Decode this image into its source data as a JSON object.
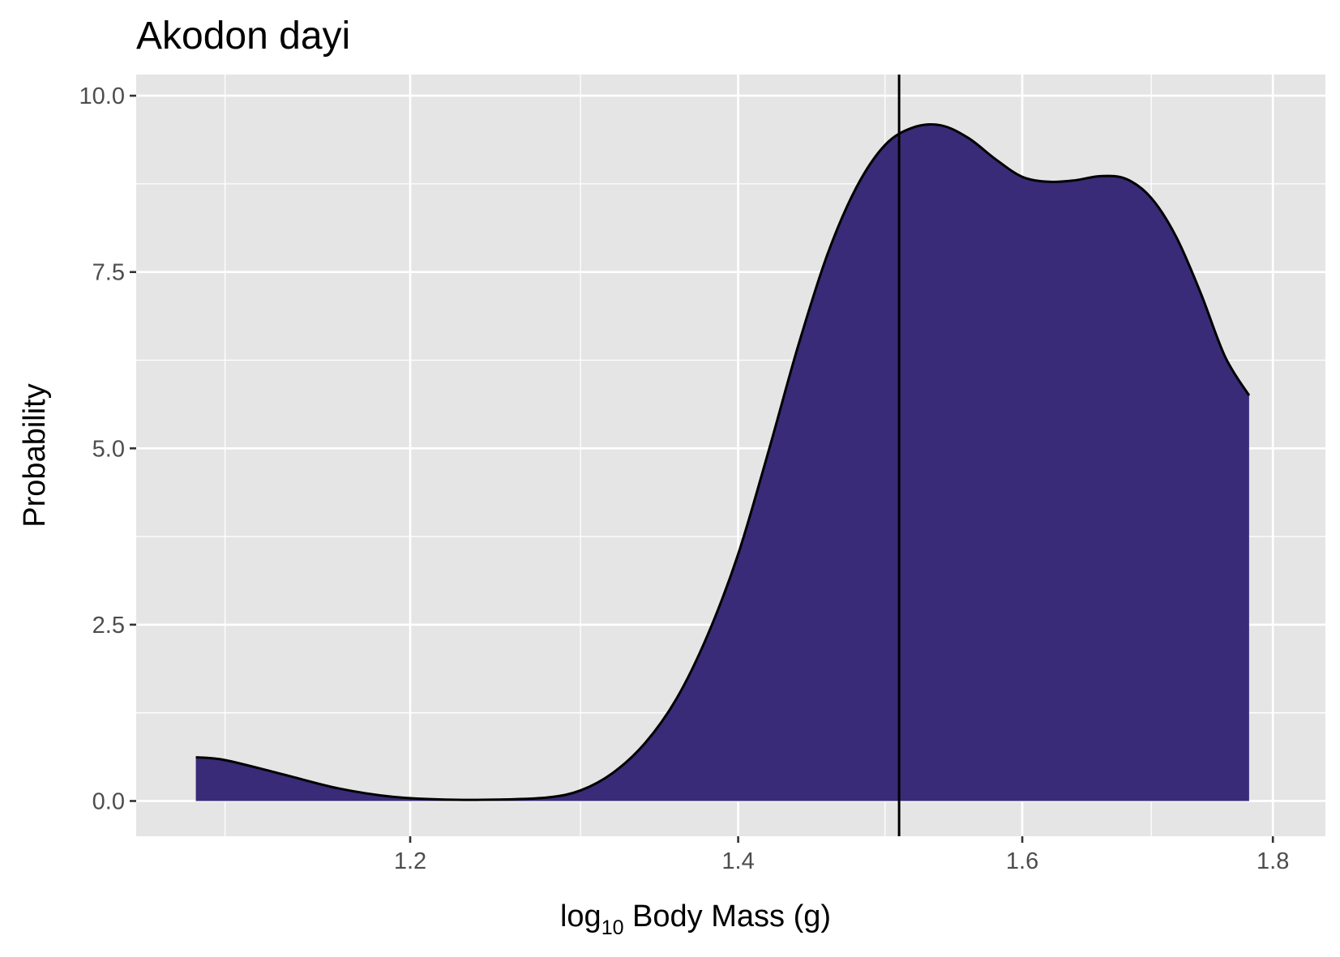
{
  "chart_data": {
    "type": "area",
    "title": "Akodon dayi",
    "xlabel": {
      "prefix": "log",
      "subscript": "10",
      "suffix": " Body Mass (g)"
    },
    "ylabel": "Probability",
    "x_scale": "log10",
    "xlim": [
      1.055,
      1.845
    ],
    "ylim": [
      -0.5,
      10.3
    ],
    "x_ticks": [
      1.2,
      1.4,
      1.6,
      1.8
    ],
    "x_tick_labels": [
      "1.2",
      "1.4",
      "1.6",
      "1.8"
    ],
    "y_ticks": [
      0,
      2.5,
      5,
      7.5,
      10
    ],
    "y_tick_labels": [
      "0.0",
      "2.5",
      "5.0",
      "7.5",
      "10.0"
    ],
    "vline_x": 1.51,
    "grid": true,
    "fill_color": "#392b78",
    "line_color": "#000000",
    "panel_bg": "#e5e5e5",
    "grid_color": "#ffffff",
    "series": [
      {
        "x": [
          1.085,
          1.1,
          1.13,
          1.16,
          1.19,
          1.22,
          1.25,
          1.28,
          1.3,
          1.32,
          1.34,
          1.36,
          1.38,
          1.4,
          1.42,
          1.44,
          1.46,
          1.48,
          1.5,
          1.52,
          1.54,
          1.56,
          1.58,
          1.6,
          1.62,
          1.64,
          1.66,
          1.68,
          1.7,
          1.72,
          1.74,
          1.76,
          1.78
        ],
        "y": [
          0.62,
          0.58,
          0.38,
          0.18,
          0.06,
          0.02,
          0.02,
          0.05,
          0.15,
          0.4,
          0.82,
          1.45,
          2.35,
          3.5,
          4.95,
          6.45,
          7.75,
          8.7,
          9.3,
          9.55,
          9.58,
          9.4,
          9.1,
          8.85,
          8.78,
          8.8,
          8.86,
          8.82,
          8.55,
          8.0,
          7.2,
          6.3,
          5.75
        ]
      }
    ]
  }
}
